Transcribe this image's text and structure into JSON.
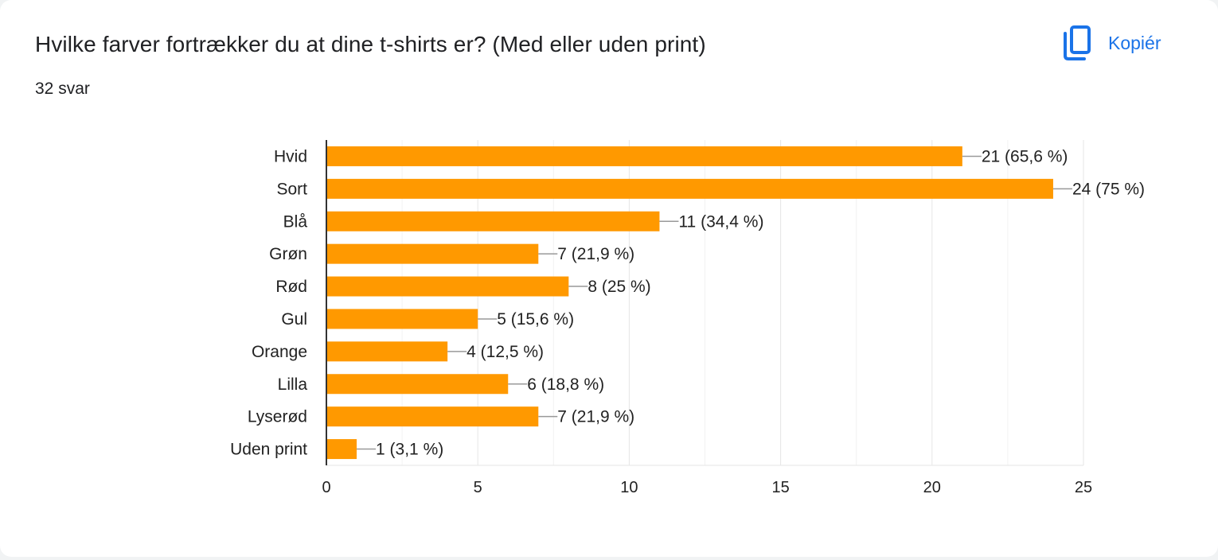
{
  "question": {
    "title": "Hvilke farver fortrækker du at dine t-shirts er? (Med eller uden print)",
    "responses": "32 svar"
  },
  "toolbar": {
    "copy_label": "Kopiér",
    "copy_icon": "copy-icon"
  },
  "colors": {
    "bar": "#ff9900",
    "accent": "#1a73e8",
    "grid": "#e0e0e0",
    "axis": "#333333",
    "leader": "#999999"
  },
  "chart_data": {
    "type": "bar",
    "orientation": "horizontal",
    "categories": [
      "Hvid",
      "Sort",
      "Blå",
      "Grøn",
      "Rød",
      "Gul",
      "Orange",
      "Lilla",
      "Lyserød",
      "Uden print"
    ],
    "values": [
      21,
      24,
      11,
      7,
      8,
      5,
      4,
      6,
      7,
      1
    ],
    "value_labels": [
      "21 (65,6 %)",
      "24 (75 %)",
      "11 (34,4 %)",
      "7 (21,9 %)",
      "8 (25 %)",
      "5 (15,6 %)",
      "4 (12,5 %)",
      "6 (18,8 %)",
      "7 (21,9 %)",
      "1 (3,1 %)"
    ],
    "xlim": [
      0,
      25
    ],
    "xticks": [
      0,
      5,
      10,
      15,
      20,
      25
    ],
    "grid": true,
    "legend": "none"
  }
}
